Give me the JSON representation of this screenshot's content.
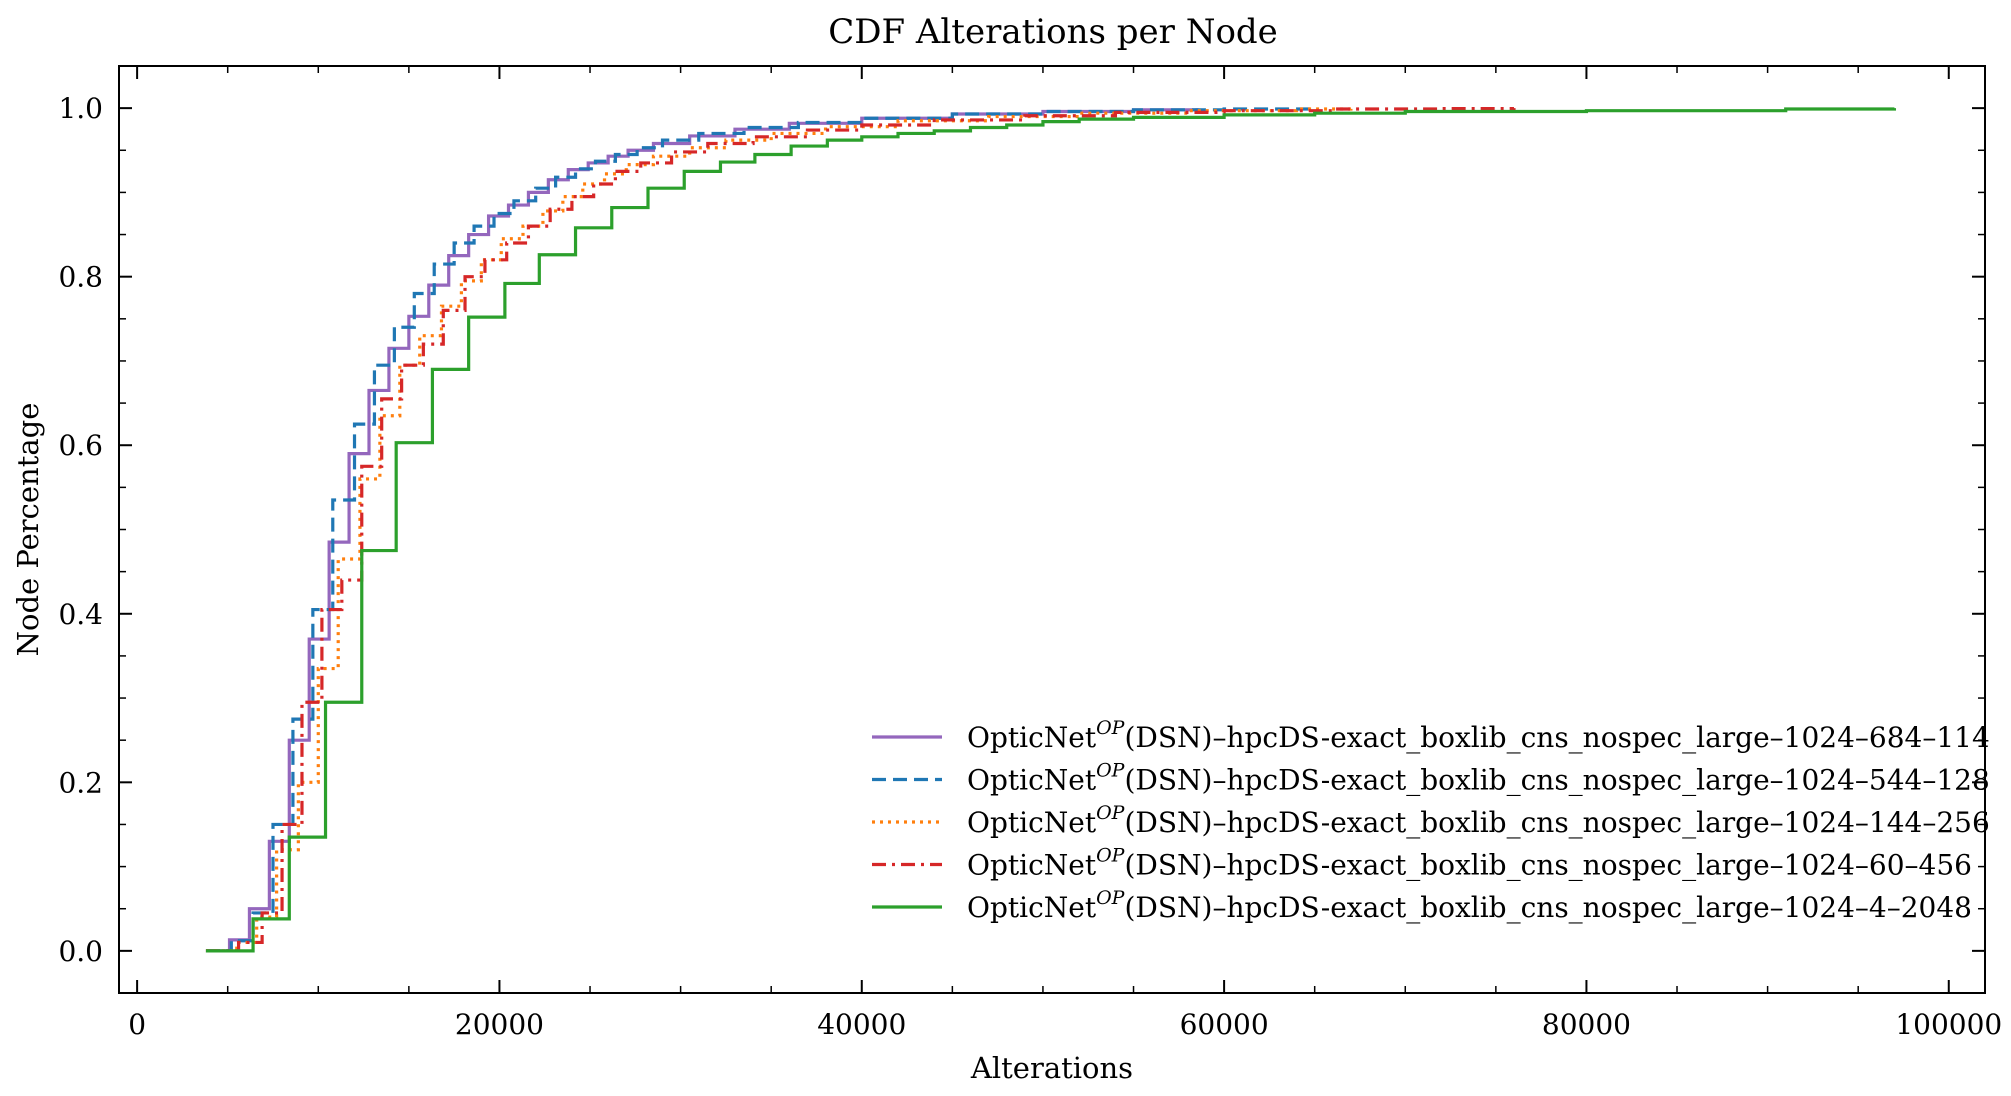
{
  "chart_data": {
    "type": "line",
    "step": "post",
    "title": "CDF Alterations per Node",
    "xlabel": "Alterations",
    "ylabel": "Node Percentage",
    "xlim": [
      -1000,
      102000
    ],
    "ylim": [
      -0.05,
      1.05
    ],
    "xticks": [
      0,
      20000,
      40000,
      60000,
      80000,
      100000
    ],
    "xtick_labels": [
      "0",
      "20000",
      "40000",
      "60000",
      "80000",
      "100000"
    ],
    "yticks": [
      0.0,
      0.2,
      0.4,
      0.6,
      0.8,
      1.0
    ],
    "ytick_labels": [
      "0.0",
      "0.2",
      "0.4",
      "0.6",
      "0.8",
      "1.0"
    ],
    "grid": false,
    "legend_position": "bottom-right",
    "series": [
      {
        "name_prefix": "OpticNet",
        "name_sup": "OP",
        "name_suffix": "(DSN)–hpcDS-exact_boxlib_cns_nospec_large–1024–684–114",
        "color": "#9467bd",
        "dash": "solid",
        "x": [
          3800,
          5100,
          6200,
          7300,
          8400,
          9500,
          10600,
          11700,
          12800,
          13900,
          15000,
          16100,
          17200,
          18300,
          19400,
          20500,
          21600,
          22700,
          23800,
          24900,
          26000,
          27100,
          28500,
          30500,
          33000,
          36000,
          40000,
          45000,
          50000,
          55000,
          58500
        ],
        "y": [
          0.0,
          0.013,
          0.05,
          0.13,
          0.25,
          0.37,
          0.485,
          0.59,
          0.665,
          0.715,
          0.753,
          0.79,
          0.825,
          0.85,
          0.872,
          0.885,
          0.9,
          0.915,
          0.927,
          0.935,
          0.943,
          0.95,
          0.958,
          0.967,
          0.975,
          0.982,
          0.988,
          0.993,
          0.996,
          0.998,
          1.0
        ]
      },
      {
        "name_prefix": "OpticNet",
        "name_sup": "OP",
        "name_suffix": "(DSN)–hpcDS-exact_boxlib_cns_nospec_large–1024–544–128",
        "color": "#1f77b4",
        "dash": "dashed",
        "x": [
          3800,
          5200,
          6400,
          7500,
          8600,
          9700,
          10800,
          12000,
          13100,
          14200,
          15300,
          16400,
          17500,
          18600,
          19700,
          20800,
          22000,
          23100,
          24200,
          25300,
          26400,
          27600,
          29000,
          31000,
          33500,
          36500,
          40000,
          45000,
          50000,
          55000,
          60000,
          65000
        ],
        "y": [
          0.0,
          0.012,
          0.045,
          0.15,
          0.275,
          0.405,
          0.535,
          0.625,
          0.695,
          0.74,
          0.78,
          0.815,
          0.84,
          0.86,
          0.875,
          0.89,
          0.905,
          0.918,
          0.928,
          0.937,
          0.945,
          0.953,
          0.962,
          0.97,
          0.977,
          0.983,
          0.988,
          0.993,
          0.996,
          0.998,
          0.999,
          1.0
        ]
      },
      {
        "name_prefix": "OpticNet",
        "name_sup": "OP",
        "name_suffix": "(DSN)–hpcDS-exact_boxlib_cns_nospec_large–1024–144–256",
        "color": "#ff7f0e",
        "dash": "dotted",
        "x": [
          3800,
          5500,
          6600,
          7700,
          8900,
          10000,
          11100,
          12300,
          13400,
          14500,
          15600,
          16800,
          17900,
          19000,
          20100,
          21300,
          22400,
          23500,
          24600,
          25800,
          27000,
          28500,
          30500,
          32500,
          35000,
          38000,
          42000,
          47000,
          52000,
          58000,
          64000,
          67000
        ],
        "y": [
          0.0,
          0.01,
          0.04,
          0.12,
          0.2,
          0.335,
          0.465,
          0.56,
          0.635,
          0.695,
          0.73,
          0.765,
          0.795,
          0.82,
          0.845,
          0.86,
          0.878,
          0.895,
          0.91,
          0.922,
          0.933,
          0.943,
          0.953,
          0.962,
          0.97,
          0.978,
          0.985,
          0.99,
          0.994,
          0.997,
          0.999,
          1.0
        ]
      },
      {
        "name_prefix": "OpticNet",
        "name_sup": "OP",
        "name_suffix": "(DSN)–hpcDS-exact_boxlib_cns_nospec_large–1024–60–456",
        "color": "#d62728",
        "dash": "dashdot",
        "x": [
          3800,
          5600,
          6900,
          8000,
          9100,
          10200,
          11300,
          12400,
          13500,
          14600,
          15800,
          16900,
          18100,
          19200,
          20400,
          21600,
          22800,
          24000,
          25200,
          26400,
          27800,
          29500,
          31500,
          34000,
          37000,
          40000,
          44000,
          49000,
          54000,
          60000,
          66000,
          72000,
          76000
        ],
        "y": [
          0.0,
          0.01,
          0.045,
          0.15,
          0.295,
          0.405,
          0.44,
          0.575,
          0.655,
          0.695,
          0.72,
          0.76,
          0.8,
          0.82,
          0.84,
          0.86,
          0.88,
          0.895,
          0.91,
          0.925,
          0.935,
          0.948,
          0.958,
          0.966,
          0.974,
          0.98,
          0.986,
          0.991,
          0.995,
          0.997,
          0.999,
          0.9995,
          1.0
        ]
      },
      {
        "name_prefix": "OpticNet",
        "name_sup": "OP",
        "name_suffix": "(DSN)–hpcDS-exact_boxlib_cns_nospec_large–1024–4–2048",
        "color": "#2ca02c",
        "dash": "solid",
        "x": [
          3800,
          6400,
          8400,
          10400,
          12400,
          14300,
          16300,
          18300,
          20300,
          22200,
          24200,
          26200,
          28200,
          30200,
          32200,
          34100,
          36100,
          38100,
          40000,
          42000,
          44000,
          46000,
          48000,
          50000,
          52000,
          55000,
          60000,
          65000,
          70000,
          80000,
          91000,
          97000
        ],
        "y": [
          0.0,
          0.038,
          0.135,
          0.295,
          0.475,
          0.603,
          0.69,
          0.752,
          0.792,
          0.826,
          0.858,
          0.882,
          0.905,
          0.925,
          0.936,
          0.945,
          0.955,
          0.962,
          0.966,
          0.97,
          0.973,
          0.977,
          0.98,
          0.984,
          0.987,
          0.989,
          0.992,
          0.994,
          0.996,
          0.997,
          0.999,
          1.0
        ]
      }
    ]
  }
}
